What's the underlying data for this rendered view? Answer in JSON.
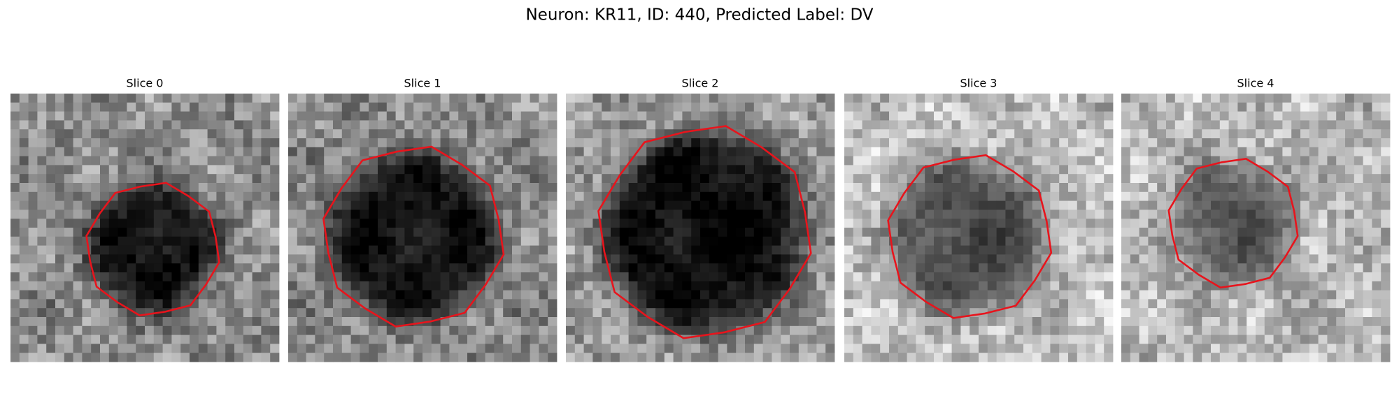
{
  "title": "Neuron: KR11, ID: 440, Predicted Label: DV",
  "panels": [
    {
      "title": "Slice 0"
    },
    {
      "title": "Slice 1"
    },
    {
      "title": "Slice 2"
    },
    {
      "title": "Slice 3"
    },
    {
      "title": "Slice 4"
    }
  ]
}
